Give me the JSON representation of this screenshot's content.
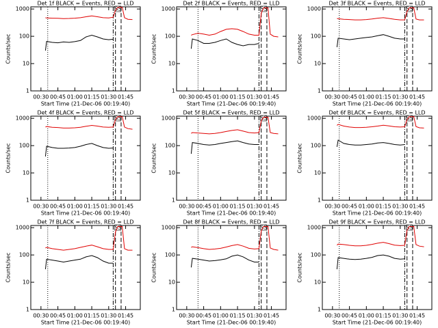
{
  "chart_data": [
    {
      "type": "line",
      "title": "Det 1f BLACK = Events, RED = LLD",
      "x_label": "Start Time (21-Dec-06 00:19:40)",
      "y_label": "Counts/sec",
      "annotation": "SS",
      "x": [
        "00:34",
        "00:35",
        "00:40",
        "00:45",
        "00:50",
        "00:55",
        "01:00",
        "01:05",
        "01:10",
        "01:15",
        "01:20",
        "01:25",
        "01:30",
        "01:34",
        "01:36",
        "01:38",
        "01:42",
        "01:44",
        "01:47",
        "01:51"
      ],
      "series": [
        {
          "color": "#e00000",
          "values": [
            480,
            470,
            460,
            455,
            445,
            450,
            460,
            480,
            520,
            560,
            520,
            480,
            470,
            500,
            900,
            1150,
            1150,
            480,
            420,
            410
          ]
        },
        {
          "color": "#000000",
          "values": [
            30,
            65,
            60,
            58,
            62,
            60,
            64,
            70,
            95,
            110,
            95,
            80,
            75,
            78,
            null,
            null,
            null,
            null,
            null,
            null
          ]
        }
      ],
      "xlim": [
        "00:21",
        "01:58"
      ],
      "xticks": [
        "00:30",
        "00:45",
        "01:00",
        "01:15",
        "01:30",
        "01:45"
      ],
      "ylim": [
        1,
        1200
      ],
      "yticks": [
        1,
        10,
        100,
        1000
      ],
      "ylog": true,
      "vlines": [
        {
          "x": "00:36",
          "style": "dotted"
        },
        {
          "x": "01:34",
          "style": "dashdot"
        },
        {
          "x": "01:36",
          "style": "dashed"
        },
        {
          "x": "01:41",
          "style": "dashed"
        }
      ]
    },
    {
      "type": "line",
      "title": "Det 2f BLACK = Events, RED = LLD",
      "x_label": "Start Time (21-Dec-06 00:19:40)",
      "y_label": "Counts/sec",
      "annotation": "SS",
      "x": [
        "00:34",
        "00:35",
        "00:40",
        "00:45",
        "00:50",
        "00:55",
        "01:00",
        "01:05",
        "01:10",
        "01:15",
        "01:20",
        "01:25",
        "01:30",
        "01:34",
        "01:36",
        "01:38",
        "01:42",
        "01:44",
        "01:47",
        "01:51"
      ],
      "series": [
        {
          "color": "#e00000",
          "values": [
            110,
            115,
            130,
            120,
            110,
            120,
            150,
            180,
            190,
            180,
            150,
            120,
            110,
            110,
            700,
            1100,
            1100,
            120,
            100,
            95
          ]
        },
        {
          "color": "#000000",
          "values": [
            35,
            80,
            70,
            55,
            55,
            60,
            70,
            80,
            60,
            50,
            45,
            50,
            50,
            55,
            null,
            null,
            null,
            null,
            null,
            null
          ]
        }
      ],
      "xlim": [
        "00:21",
        "01:58"
      ],
      "xticks": [
        "00:30",
        "00:45",
        "01:00",
        "01:15",
        "01:30",
        "01:45"
      ],
      "ylim": [
        1,
        1200
      ],
      "yticks": [
        1,
        10,
        100,
        1000
      ],
      "ylog": true,
      "vlines": [
        {
          "x": "00:40",
          "style": "dotted"
        },
        {
          "x": "01:34",
          "style": "dashdot"
        },
        {
          "x": "01:36",
          "style": "dashed"
        },
        {
          "x": "01:41",
          "style": "dashed"
        }
      ]
    },
    {
      "type": "line",
      "title": "Det 3f BLACK = Events, RED = LLD",
      "x_label": "Start Time (21-Dec-06 00:19:40)",
      "y_label": "Counts/sec",
      "annotation": "SS",
      "x": [
        "00:34",
        "00:35",
        "00:40",
        "00:45",
        "00:50",
        "00:55",
        "01:00",
        "01:05",
        "01:10",
        "01:15",
        "01:20",
        "01:25",
        "01:30",
        "01:34",
        "01:36",
        "01:38",
        "01:42",
        "01:44",
        "01:47",
        "01:51"
      ],
      "series": [
        {
          "color": "#e00000",
          "values": [
            450,
            440,
            420,
            410,
            400,
            400,
            410,
            430,
            460,
            480,
            450,
            420,
            400,
            400,
            800,
            1100,
            1100,
            430,
            400,
            400
          ]
        },
        {
          "color": "#000000",
          "values": [
            40,
            85,
            80,
            75,
            80,
            85,
            90,
            95,
            105,
            115,
            100,
            85,
            80,
            80,
            null,
            null,
            null,
            null,
            null,
            null
          ]
        }
      ],
      "xlim": [
        "00:21",
        "01:58"
      ],
      "xticks": [
        "00:30",
        "00:45",
        "01:00",
        "01:15",
        "01:30",
        "01:45"
      ],
      "ylim": [
        1,
        1200
      ],
      "yticks": [
        1,
        10,
        100,
        1000
      ],
      "ylog": true,
      "vlines": [
        {
          "x": "00:36",
          "style": "dotted"
        },
        {
          "x": "01:34",
          "style": "dashdot"
        },
        {
          "x": "01:36",
          "style": "dashed"
        },
        {
          "x": "01:41",
          "style": "dashed"
        }
      ]
    },
    {
      "type": "line",
      "title": "Det 4f BLACK = Events, RED = LLD",
      "x_label": "Start Time (21-Dec-06 00:19:40)",
      "y_label": "Counts/sec",
      "annotation": "SS",
      "x": [
        "00:34",
        "00:35",
        "00:40",
        "00:45",
        "00:50",
        "00:55",
        "01:00",
        "01:05",
        "01:10",
        "01:15",
        "01:20",
        "01:25",
        "01:30",
        "01:34",
        "01:36",
        "01:38",
        "01:42",
        "01:44",
        "01:47",
        "01:51"
      ],
      "series": [
        {
          "color": "#e00000",
          "values": [
            480,
            500,
            470,
            460,
            440,
            440,
            450,
            470,
            510,
            550,
            520,
            480,
            470,
            480,
            900,
            1150,
            1150,
            480,
            420,
            400
          ]
        },
        {
          "color": "#000000",
          "values": [
            40,
            95,
            85,
            80,
            80,
            82,
            85,
            95,
            110,
            120,
            100,
            85,
            80,
            82,
            null,
            null,
            null,
            null,
            null,
            null
          ]
        }
      ],
      "xlim": [
        "00:21",
        "01:58"
      ],
      "xticks": [
        "00:30",
        "00:45",
        "01:00",
        "01:15",
        "01:30",
        "01:45"
      ],
      "ylim": [
        1,
        1200
      ],
      "yticks": [
        1,
        10,
        100,
        1000
      ],
      "ylog": true,
      "vlines": [
        {
          "x": "00:36",
          "style": "dotted"
        },
        {
          "x": "01:34",
          "style": "dashdot"
        },
        {
          "x": "01:36",
          "style": "dashed"
        },
        {
          "x": "01:41",
          "style": "dashed"
        }
      ]
    },
    {
      "type": "line",
      "title": "Det 5f BLACK = Events, RED = LLD",
      "x_label": "Start Time (21-Dec-06 00:19:40)",
      "y_label": "Counts/sec",
      "annotation": "SS",
      "x": [
        "00:34",
        "00:35",
        "00:40",
        "00:45",
        "00:50",
        "00:55",
        "01:00",
        "01:05",
        "01:10",
        "01:15",
        "01:20",
        "01:25",
        "01:30",
        "01:34",
        "01:36",
        "01:38",
        "01:42",
        "01:44",
        "01:47",
        "01:51"
      ],
      "series": [
        {
          "color": "#e00000",
          "values": [
            280,
            300,
            290,
            280,
            270,
            280,
            300,
            330,
            360,
            380,
            340,
            300,
            290,
            300,
            800,
            1100,
            1100,
            300,
            280,
            270
          ]
        },
        {
          "color": "#000000",
          "values": [
            50,
            130,
            120,
            110,
            105,
            110,
            120,
            130,
            140,
            150,
            130,
            115,
            110,
            110,
            null,
            null,
            null,
            null,
            null,
            null
          ]
        }
      ],
      "xlim": [
        "00:21",
        "01:58"
      ],
      "xticks": [
        "00:30",
        "00:45",
        "01:00",
        "01:15",
        "01:30",
        "01:45"
      ],
      "ylim": [
        1,
        1200
      ],
      "yticks": [
        1,
        10,
        100,
        1000
      ],
      "ylog": true,
      "vlines": [
        {
          "x": "00:40",
          "style": "dotted"
        },
        {
          "x": "01:34",
          "style": "dashdot"
        },
        {
          "x": "01:36",
          "style": "dashed"
        },
        {
          "x": "01:41",
          "style": "dashed"
        }
      ]
    },
    {
      "type": "line",
      "title": "Det 6f BLACK = Events, RED = LLD",
      "x_label": "Start Time (21-Dec-06 00:19:40)",
      "y_label": "Counts/sec",
      "annotation": "SS",
      "x": [
        "00:34",
        "00:35",
        "00:40",
        "00:45",
        "00:50",
        "00:55",
        "01:00",
        "01:05",
        "01:10",
        "01:15",
        "01:20",
        "01:25",
        "01:30",
        "01:34",
        "01:36",
        "01:38",
        "01:42",
        "01:44",
        "01:47",
        "01:51"
      ],
      "series": [
        {
          "color": "#e00000",
          "values": [
            550,
            600,
            520,
            480,
            460,
            460,
            470,
            490,
            520,
            560,
            530,
            490,
            480,
            490,
            900,
            1150,
            1150,
            500,
            450,
            440
          ]
        },
        {
          "color": "#000000",
          "values": [
            90,
            160,
            120,
            110,
            105,
            105,
            110,
            115,
            125,
            130,
            120,
            110,
            105,
            110,
            null,
            null,
            null,
            null,
            null,
            null
          ]
        }
      ],
      "xlim": [
        "00:21",
        "01:58"
      ],
      "xticks": [
        "00:30",
        "00:45",
        "01:00",
        "01:15",
        "01:30",
        "01:45"
      ],
      "ylim": [
        1,
        1200
      ],
      "yticks": [
        1,
        10,
        100,
        1000
      ],
      "ylog": true,
      "vlines": [
        {
          "x": "00:36",
          "style": "dotted"
        },
        {
          "x": "01:34",
          "style": "dashdot"
        },
        {
          "x": "01:36",
          "style": "dashed"
        },
        {
          "x": "01:41",
          "style": "dashed"
        }
      ]
    },
    {
      "type": "line",
      "title": "Det 7f BLACK = Events, RED = LLD",
      "x_label": "Start Time (21-Dec-06 00:19:40)",
      "y_label": "Counts/sec",
      "annotation": "SS",
      "x": [
        "00:34",
        "00:35",
        "00:40",
        "00:45",
        "00:50",
        "00:55",
        "01:00",
        "01:05",
        "01:10",
        "01:15",
        "01:20",
        "01:25",
        "01:30",
        "01:34",
        "01:36",
        "01:38",
        "01:42",
        "01:44",
        "01:47",
        "01:51"
      ],
      "series": [
        {
          "color": "#e00000",
          "values": [
            180,
            190,
            170,
            160,
            150,
            160,
            170,
            190,
            210,
            230,
            200,
            170,
            160,
            160,
            700,
            1100,
            1100,
            170,
            150,
            150
          ]
        },
        {
          "color": "#000000",
          "values": [
            30,
            70,
            65,
            60,
            55,
            60,
            65,
            70,
            85,
            95,
            80,
            60,
            50,
            50,
            null,
            null,
            null,
            null,
            null,
            null
          ]
        }
      ],
      "xlim": [
        "00:21",
        "01:58"
      ],
      "xticks": [
        "00:30",
        "00:45",
        "01:00",
        "01:15",
        "01:30",
        "01:45"
      ],
      "ylim": [
        1,
        1200
      ],
      "yticks": [
        1,
        10,
        100,
        1000
      ],
      "ylog": true,
      "vlines": [
        {
          "x": "00:36",
          "style": "dotted"
        },
        {
          "x": "01:34",
          "style": "dashdot"
        },
        {
          "x": "01:36",
          "style": "dashed"
        },
        {
          "x": "01:41",
          "style": "dashed"
        }
      ]
    },
    {
      "type": "line",
      "title": "Det 8f BLACK = Events, RED = LLD",
      "x_label": "Start Time (21-Dec-06 00:19:40)",
      "y_label": "Counts/sec",
      "annotation": "SS",
      "x": [
        "00:34",
        "00:35",
        "00:40",
        "00:45",
        "00:50",
        "00:55",
        "01:00",
        "01:05",
        "01:10",
        "01:15",
        "01:20",
        "01:25",
        "01:30",
        "01:34",
        "01:36",
        "01:38",
        "01:42",
        "01:44",
        "01:47",
        "01:51"
      ],
      "series": [
        {
          "color": "#e00000",
          "values": [
            190,
            200,
            185,
            170,
            160,
            165,
            175,
            195,
            220,
            240,
            210,
            175,
            165,
            170,
            750,
            1100,
            1100,
            180,
            160,
            150
          ]
        },
        {
          "color": "#000000",
          "values": [
            35,
            75,
            70,
            65,
            60,
            62,
            66,
            72,
            90,
            100,
            85,
            65,
            55,
            55,
            null,
            null,
            null,
            null,
            null,
            null
          ]
        }
      ],
      "xlim": [
        "00:21",
        "01:58"
      ],
      "xticks": [
        "00:30",
        "00:45",
        "01:00",
        "01:15",
        "01:30",
        "01:45"
      ],
      "ylim": [
        1,
        1200
      ],
      "yticks": [
        1,
        10,
        100,
        1000
      ],
      "ylog": true,
      "vlines": [
        {
          "x": "00:40",
          "style": "dotted"
        },
        {
          "x": "01:34",
          "style": "dashdot"
        },
        {
          "x": "01:36",
          "style": "dashed"
        },
        {
          "x": "01:41",
          "style": "dashed"
        }
      ]
    },
    {
      "type": "line",
      "title": "Det 9f BLACK = Events, RED = LLD",
      "x_label": "Start Time (21-Dec-06 00:19:40)",
      "y_label": "Counts/sec",
      "annotation": "SS",
      "x": [
        "00:34",
        "00:35",
        "00:40",
        "00:45",
        "00:50",
        "00:55",
        "01:00",
        "01:05",
        "01:10",
        "01:15",
        "01:20",
        "01:25",
        "01:30",
        "01:34",
        "01:36",
        "01:38",
        "01:42",
        "01:44",
        "01:47",
        "01:51"
      ],
      "series": [
        {
          "color": "#e00000",
          "values": [
            230,
            250,
            240,
            225,
            215,
            215,
            225,
            245,
            270,
            290,
            260,
            230,
            220,
            225,
            800,
            1100,
            1100,
            240,
            210,
            200
          ]
        },
        {
          "color": "#000000",
          "values": [
            30,
            80,
            75,
            70,
            68,
            70,
            75,
            82,
            95,
            100,
            90,
            75,
            70,
            72,
            null,
            null,
            null,
            null,
            null,
            null
          ]
        }
      ],
      "xlim": [
        "00:21",
        "01:58"
      ],
      "xticks": [
        "00:30",
        "00:45",
        "01:00",
        "01:15",
        "01:30",
        "01:45"
      ],
      "ylim": [
        1,
        1200
      ],
      "yticks": [
        1,
        10,
        100,
        1000
      ],
      "ylog": true,
      "vlines": [
        {
          "x": "00:36",
          "style": "dotted"
        },
        {
          "x": "01:34",
          "style": "dashdot"
        },
        {
          "x": "01:36",
          "style": "dashed"
        },
        {
          "x": "01:41",
          "style": "dashed"
        }
      ]
    }
  ]
}
